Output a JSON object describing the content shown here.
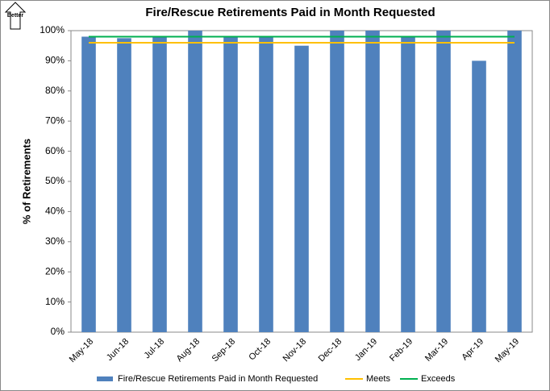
{
  "chart_data": {
    "type": "bar",
    "title": "Fire/Rescue Retirements Paid in Month Requested",
    "annotation": "Better",
    "y_label": "% of Retirements",
    "categories": [
      "May-18",
      "Jun-18",
      "Jul-18",
      "Aug-18",
      "Sep-18",
      "Oct-18",
      "Nov-18",
      "Dec-18",
      "Jan-19",
      "Feb-19",
      "Mar-19",
      "Apr-19",
      "May-19"
    ],
    "series": [
      {
        "name": "Fire/Rescue Retirements Paid in Month Requested",
        "type": "bar",
        "color": "#4f81bd",
        "values": [
          98,
          97.5,
          98,
          100,
          98,
          98,
          95,
          100,
          100,
          98,
          100,
          90,
          100
        ]
      },
      {
        "name": "Meets",
        "type": "line",
        "color": "#ffc000",
        "values": [
          96,
          96,
          96,
          96,
          96,
          96,
          96,
          96,
          96,
          96,
          96,
          96,
          96
        ]
      },
      {
        "name": "Exceeds",
        "type": "line",
        "color": "#00b050",
        "values": [
          98,
          98,
          98,
          98,
          98,
          98,
          98,
          98,
          98,
          98,
          98,
          98,
          98
        ]
      }
    ],
    "ylim": [
      0,
      100
    ],
    "yticks": [
      {
        "value": 0,
        "label": "0%"
      },
      {
        "value": 10,
        "label": "10%"
      },
      {
        "value": 20,
        "label": "20%"
      },
      {
        "value": 30,
        "label": "30%"
      },
      {
        "value": 40,
        "label": "40%"
      },
      {
        "value": 50,
        "label": "50%"
      },
      {
        "value": 60,
        "label": "60%"
      },
      {
        "value": 70,
        "label": "70%"
      },
      {
        "value": 80,
        "label": "80%"
      },
      {
        "value": 90,
        "label": "90%"
      },
      {
        "value": 100,
        "label": "100%"
      }
    ],
    "legend": "bottom"
  }
}
